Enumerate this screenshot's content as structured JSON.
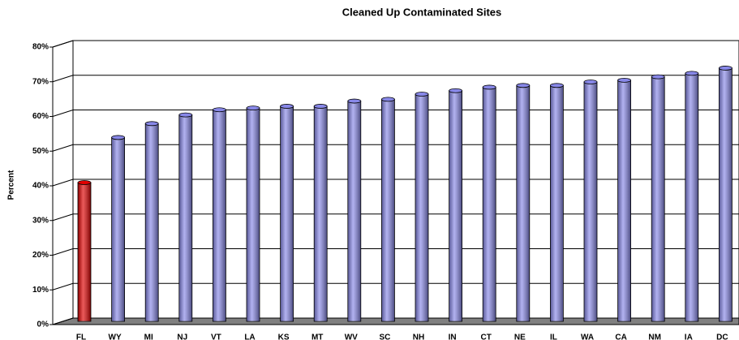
{
  "chart_data": {
    "type": "bar",
    "title": "Cleaned Up Contaminated Sites",
    "y_label": "Percent",
    "categories": [
      "FL",
      "WY",
      "MI",
      "NJ",
      "VT",
      "LA",
      "KS",
      "MT",
      "WV",
      "SC",
      "NH",
      "IN",
      "CT",
      "NE",
      "IL",
      "WA",
      "CA",
      "NM",
      "IA",
      "DC"
    ],
    "values": [
      40,
      53,
      57,
      59.5,
      61,
      61.5,
      62,
      62,
      63.5,
      64,
      65.5,
      66.5,
      67.5,
      68,
      68,
      69,
      69.5,
      70.5,
      71.5,
      73
    ],
    "colors": [
      "#e00000",
      "#8888e8",
      "#8888e8",
      "#8888e8",
      "#8888e8",
      "#8888e8",
      "#8888e8",
      "#8888e8",
      "#8888e8",
      "#8888e8",
      "#8888e8",
      "#8888e8",
      "#8888e8",
      "#8888e8",
      "#8888e8",
      "#8888e8",
      "#8888e8",
      "#8888e8",
      "#8888e8",
      "#8888e8"
    ],
    "ylim": [
      0,
      80
    ],
    "yticks": [
      {
        "value": 0,
        "label": "0%"
      },
      {
        "value": 10,
        "label": "10%"
      },
      {
        "value": 20,
        "label": "20%"
      },
      {
        "value": 30,
        "label": "30%"
      },
      {
        "value": 40,
        "label": "40%"
      },
      {
        "value": 50,
        "label": "50%"
      },
      {
        "value": 60,
        "label": "60%"
      },
      {
        "value": 70,
        "label": "70%"
      },
      {
        "value": 80,
        "label": "80%"
      }
    ],
    "grid": true
  }
}
